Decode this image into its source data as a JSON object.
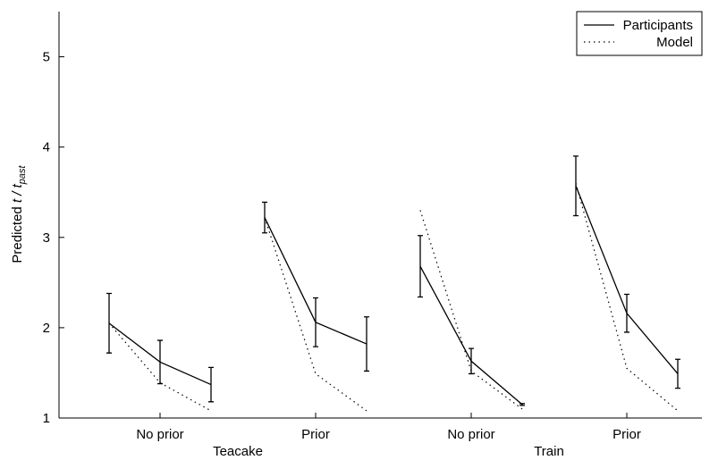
{
  "chart_data": {
    "type": "grouped-line",
    "ylabel": {
      "text": "Predicted",
      "var": "t / t",
      "sub": "past"
    },
    "ylim": [
      1,
      5.5
    ],
    "yticks": [
      1,
      2,
      3,
      4,
      5
    ],
    "series": [
      {
        "name": "Participants",
        "dash": "none",
        "color": "#000000"
      },
      {
        "name": "Model",
        "dash": "1.5 4",
        "color": "#000000"
      }
    ],
    "groups": [
      {
        "label": "No prior",
        "participants": [
          2.05,
          1.62,
          1.37
        ],
        "errors": [
          0.33,
          0.24,
          0.19
        ],
        "model": [
          2.05,
          1.39,
          1.08
        ]
      },
      {
        "label": "Prior",
        "participants": [
          3.22,
          2.06,
          1.82
        ],
        "errors": [
          0.17,
          0.27,
          0.3
        ],
        "model": [
          3.22,
          1.49,
          1.08
        ]
      },
      {
        "label": "No prior",
        "participants": [
          2.68,
          1.63,
          1.15
        ],
        "errors": [
          0.34,
          0.14,
          0.01
        ],
        "model": [
          3.3,
          1.52,
          1.1
        ]
      },
      {
        "label": "Prior",
        "participants": [
          3.57,
          2.16,
          1.49
        ],
        "errors": [
          0.33,
          0.21,
          0.16
        ],
        "model": [
          3.6,
          1.55,
          1.08
        ]
      }
    ],
    "supergroups": [
      {
        "label": "Teacake",
        "groups": [
          0,
          1
        ]
      },
      {
        "label": "Train",
        "groups": [
          2,
          3
        ]
      }
    ],
    "legend": "upper right"
  }
}
